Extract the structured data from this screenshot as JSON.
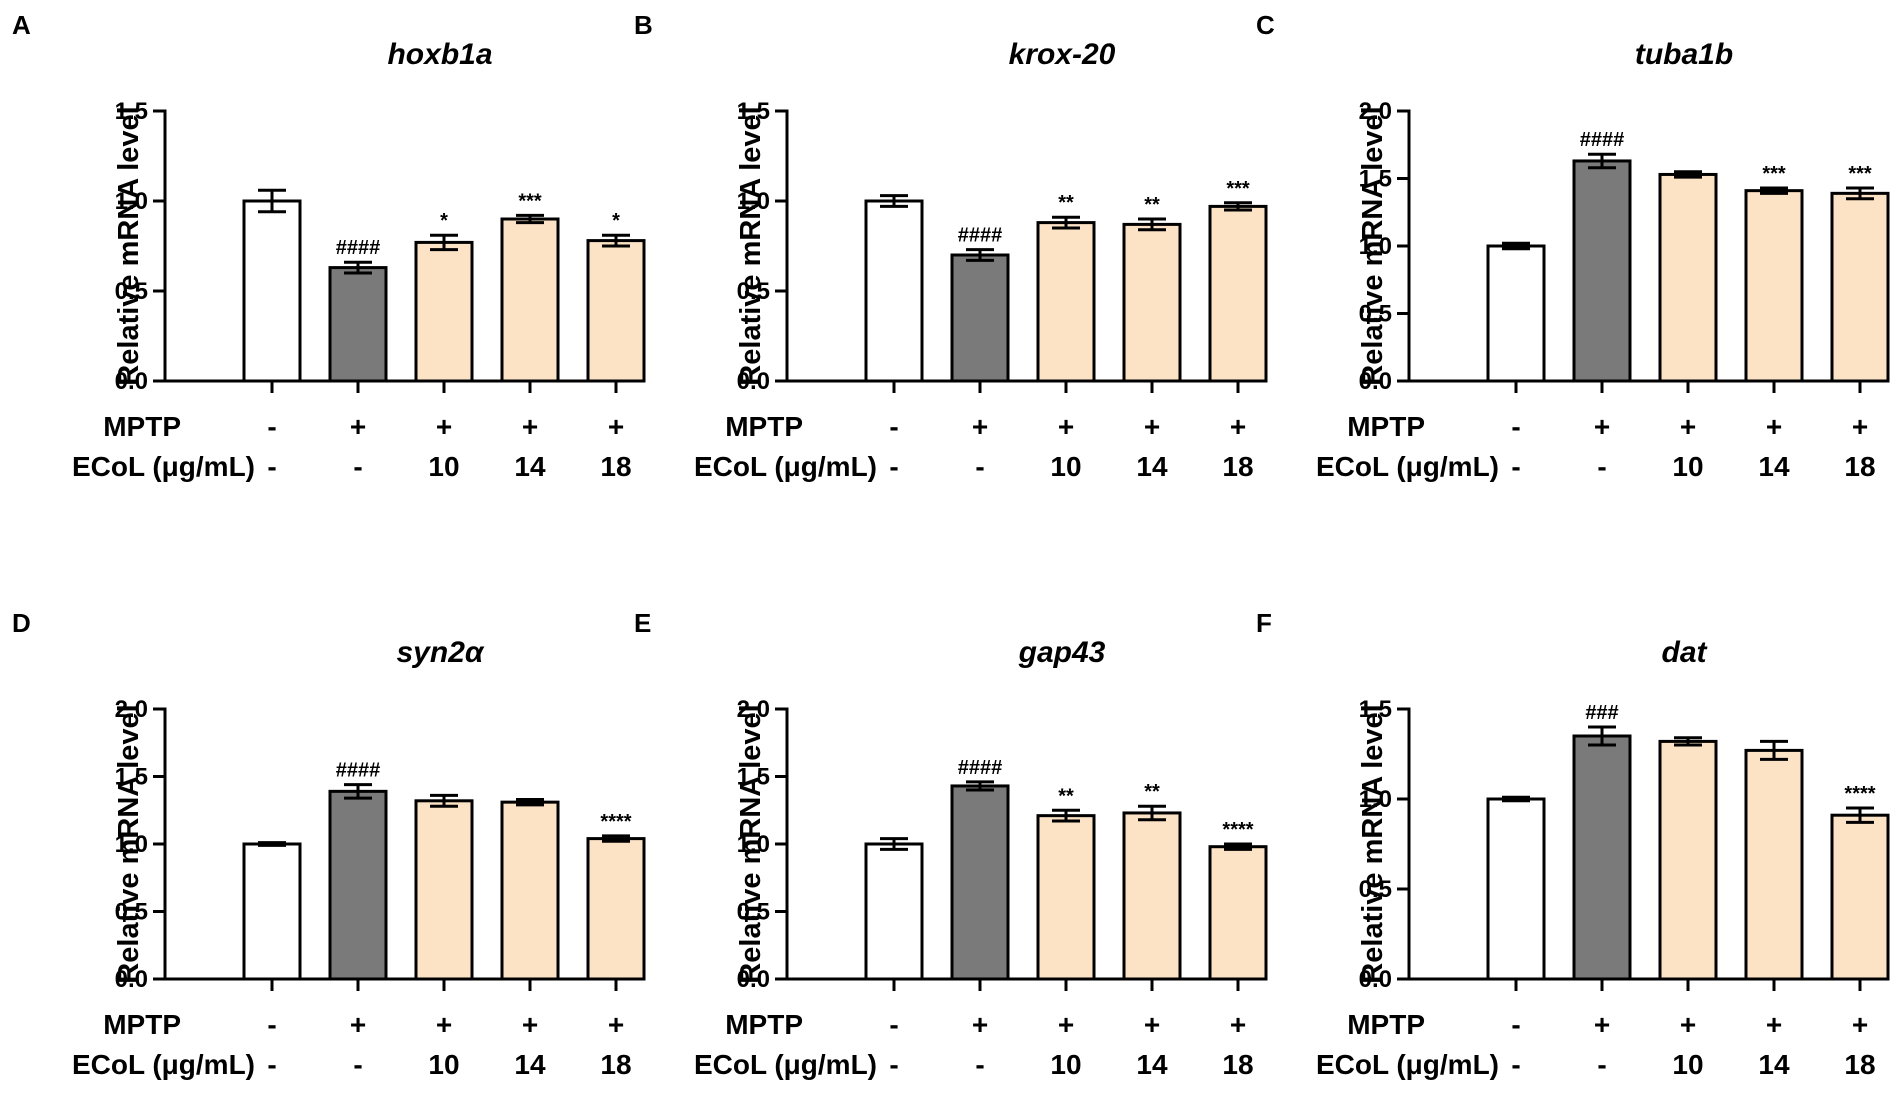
{
  "colors": {
    "control": "#ffffff",
    "mptp": "#7a7a7a",
    "treated": "#fde3c6",
    "stroke": "#000000"
  },
  "row_labels": {
    "mptp": "MPTP",
    "ecol": "ECoL (μg/mL)"
  },
  "chart_data": [
    {
      "type": "bar",
      "panel": "A",
      "title": "hoxb1a",
      "ylabel": "Relative mRNA level",
      "ylim": [
        0,
        1.5
      ],
      "yticks": [
        "0.0",
        "0.5",
        "1.0",
        "1.5"
      ],
      "ytick_values": [
        0,
        0.5,
        1.0,
        1.5
      ],
      "mptp": [
        "-",
        "+",
        "+",
        "+",
        "+"
      ],
      "ecol": [
        "-",
        "-",
        "10",
        "14",
        "18"
      ],
      "values": [
        1.0,
        0.63,
        0.77,
        0.9,
        0.78
      ],
      "errors": [
        0.06,
        0.03,
        0.04,
        0.02,
        0.03
      ],
      "colors": [
        "control",
        "mptp",
        "treated",
        "treated",
        "treated"
      ],
      "significance": [
        "",
        "####",
        "*",
        "***",
        "*"
      ]
    },
    {
      "type": "bar",
      "panel": "B",
      "title": "krox-20",
      "ylabel": "Relative mRNA level",
      "ylim": [
        0,
        1.5
      ],
      "yticks": [
        "0.0",
        "0.5",
        "1.0",
        "1.5"
      ],
      "ytick_values": [
        0,
        0.5,
        1.0,
        1.5
      ],
      "mptp": [
        "-",
        "+",
        "+",
        "+",
        "+"
      ],
      "ecol": [
        "-",
        "-",
        "10",
        "14",
        "18"
      ],
      "values": [
        1.0,
        0.7,
        0.88,
        0.87,
        0.97
      ],
      "errors": [
        0.03,
        0.03,
        0.03,
        0.03,
        0.02
      ],
      "colors": [
        "control",
        "mptp",
        "treated",
        "treated",
        "treated"
      ],
      "significance": [
        "",
        "####",
        "**",
        "**",
        "***"
      ]
    },
    {
      "type": "bar",
      "panel": "C",
      "title": "tuba1b",
      "ylabel": "Relative mRNA level",
      "ylim": [
        0,
        2.0
      ],
      "yticks": [
        "0.0",
        "0.5",
        "1.0",
        "1.5",
        "2.0"
      ],
      "ytick_values": [
        0,
        0.5,
        1.0,
        1.5,
        2.0
      ],
      "mptp": [
        "-",
        "+",
        "+",
        "+",
        "+"
      ],
      "ecol": [
        "-",
        "-",
        "10",
        "14",
        "18"
      ],
      "values": [
        1.0,
        1.63,
        1.53,
        1.41,
        1.39
      ],
      "errors": [
        0.02,
        0.05,
        0.02,
        0.02,
        0.04
      ],
      "colors": [
        "control",
        "mptp",
        "treated",
        "treated",
        "treated"
      ],
      "significance": [
        "",
        "####",
        "",
        "***",
        "***"
      ]
    },
    {
      "type": "bar",
      "panel": "D",
      "title": "syn2α",
      "ylabel": "Relative mRNA level",
      "ylim": [
        0,
        2.0
      ],
      "yticks": [
        "0.0",
        "0.5",
        "1.0",
        "1.5",
        "2.0"
      ],
      "ytick_values": [
        0,
        0.5,
        1.0,
        1.5,
        2.0
      ],
      "mptp": [
        "-",
        "+",
        "+",
        "+",
        "+"
      ],
      "ecol": [
        "-",
        "-",
        "10",
        "14",
        "18"
      ],
      "values": [
        1.0,
        1.39,
        1.32,
        1.31,
        1.04
      ],
      "errors": [
        0.01,
        0.05,
        0.04,
        0.02,
        0.02
      ],
      "colors": [
        "control",
        "mptp",
        "treated",
        "treated",
        "treated"
      ],
      "significance": [
        "",
        "####",
        "",
        "",
        "****"
      ]
    },
    {
      "type": "bar",
      "panel": "E",
      "title": "gap43",
      "ylabel": "Relative mRNA level",
      "ylim": [
        0,
        2.0
      ],
      "yticks": [
        "0.0",
        "0.5",
        "1.0",
        "1.5",
        "2.0"
      ],
      "ytick_values": [
        0,
        0.5,
        1.0,
        1.5,
        2.0
      ],
      "mptp": [
        "-",
        "+",
        "+",
        "+",
        "+"
      ],
      "ecol": [
        "-",
        "-",
        "10",
        "14",
        "18"
      ],
      "values": [
        1.0,
        1.43,
        1.21,
        1.23,
        0.98
      ],
      "errors": [
        0.04,
        0.03,
        0.04,
        0.05,
        0.02
      ],
      "colors": [
        "control",
        "mptp",
        "treated",
        "treated",
        "treated"
      ],
      "significance": [
        "",
        "####",
        "**",
        "**",
        "****"
      ]
    },
    {
      "type": "bar",
      "panel": "F",
      "title": "dat",
      "ylabel": "Relative mRNA level",
      "ylim": [
        0,
        1.5
      ],
      "yticks": [
        "0.0",
        "0.5",
        "1.0",
        "1.5"
      ],
      "ytick_values": [
        0,
        0.5,
        1.0,
        1.5
      ],
      "mptp": [
        "-",
        "+",
        "+",
        "+",
        "+"
      ],
      "ecol": [
        "-",
        "-",
        "10",
        "14",
        "18"
      ],
      "values": [
        1.0,
        1.35,
        1.32,
        1.27,
        0.91
      ],
      "errors": [
        0.01,
        0.05,
        0.02,
        0.05,
        0.04
      ],
      "colors": [
        "control",
        "mptp",
        "treated",
        "treated",
        "treated"
      ],
      "significance": [
        "",
        "###",
        "",
        "",
        "****"
      ]
    }
  ]
}
